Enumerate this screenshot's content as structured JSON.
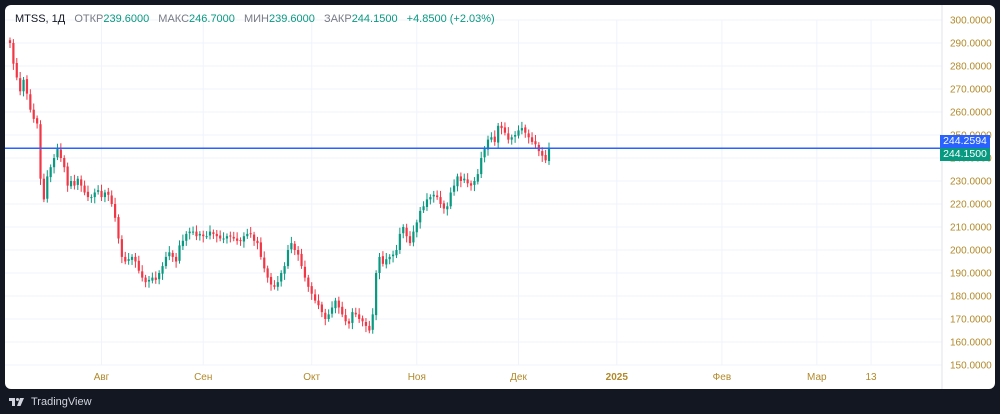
{
  "legend": {
    "symbol": "MTSS, 1Д",
    "open_label": "ОТКР",
    "open": "239.6000",
    "high_label": "МАКС",
    "high": "246.7000",
    "low_label": "МИН",
    "low": "239.6000",
    "close_label": "ЗАКР",
    "close": "244.1500",
    "change": "+4.8500 (+2.03%)"
  },
  "brand": "TradingView",
  "colors": {
    "up": "#089981",
    "down": "#f23645",
    "line": "#2962ff",
    "axis_text": "#b2892a",
    "grid": "#f0f3fa"
  },
  "price_tags": [
    {
      "label": "244.2594",
      "color": "#2962ff"
    },
    {
      "label": "244.1500",
      "color": "#089981"
    }
  ],
  "chart_data": {
    "type": "candlestick",
    "y_ticks": [
      "300.0000",
      "290.0000",
      "280.0000",
      "270.0000",
      "260.0000",
      "250.0000",
      "240.0000",
      "230.0000",
      "220.0000",
      "210.0000",
      "200.0000",
      "190.0000",
      "180.0000",
      "170.0000",
      "160.0000",
      "150.0000"
    ],
    "ylim": [
      150,
      300
    ],
    "x_labels": [
      {
        "label": "Авг",
        "index": 27
      },
      {
        "label": "Сен",
        "index": 57
      },
      {
        "label": "Окт",
        "index": 89
      },
      {
        "label": "Ноя",
        "index": 120
      },
      {
        "label": "Дек",
        "index": 150
      },
      {
        "label": "2025",
        "index": 179
      },
      {
        "label": "Фев",
        "index": 210
      },
      {
        "label": "Мар",
        "index": 238
      },
      {
        "label": "13",
        "index": 254
      }
    ],
    "horizontal_line": 244.2594,
    "closes": [
      290,
      281,
      275,
      269,
      274,
      268,
      261,
      257,
      255,
      231,
      222,
      232,
      236,
      240,
      244,
      240,
      236,
      228,
      230,
      228,
      231,
      228,
      225,
      223,
      223,
      225,
      226,
      223,
      225,
      224,
      220,
      214,
      205,
      197,
      195,
      196,
      197,
      195,
      191,
      188,
      186,
      187,
      188,
      187,
      190,
      193,
      197,
      199,
      197,
      195,
      202,
      204,
      207,
      208,
      208,
      206,
      207,
      206,
      206,
      208,
      207,
      206,
      205,
      205,
      206,
      206,
      205,
      204,
      204,
      206,
      207,
      207,
      204,
      203,
      197,
      192,
      188,
      185,
      184,
      186,
      190,
      193,
      200,
      203,
      200,
      198,
      193,
      188,
      184,
      181,
      178,
      176,
      173,
      170,
      172,
      175,
      178,
      175,
      172,
      169,
      168,
      173,
      172,
      170,
      169,
      167,
      165,
      172,
      190,
      197,
      194,
      196,
      197,
      198,
      200,
      207,
      210,
      206,
      203,
      208,
      212,
      217,
      219,
      222,
      223,
      224,
      223,
      220,
      218,
      219,
      225,
      228,
      232,
      230,
      231,
      229,
      228,
      230,
      233,
      240,
      244,
      248,
      249,
      247,
      254,
      253,
      251,
      248,
      249,
      250,
      252,
      253,
      251,
      249,
      247,
      246,
      243,
      241,
      239,
      244
    ],
    "last_close": 244.15
  }
}
